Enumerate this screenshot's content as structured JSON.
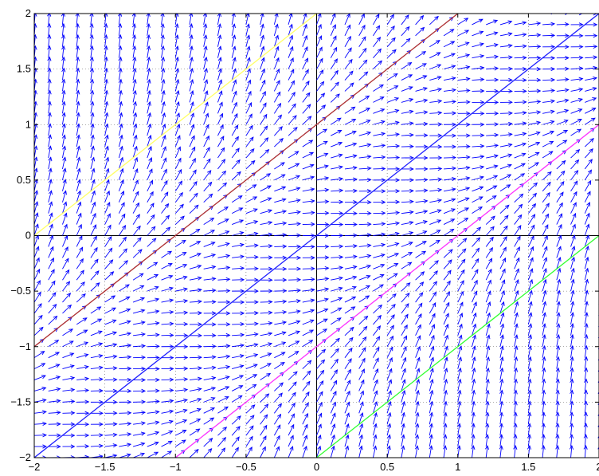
{
  "chart_data": {
    "type": "quiver",
    "title": "",
    "xlabel": "",
    "ylabel": "",
    "xlim": [
      -2,
      2
    ],
    "ylim": [
      -2,
      2
    ],
    "grid": "dotted",
    "legend": "none",
    "x_tick_labels": [
      "−2",
      "−1.5",
      "−1",
      "−0.5",
      "0",
      "0.5",
      "1",
      "1.5",
      "2"
    ],
    "y_tick_labels": [
      "−2",
      "−1.5",
      "−1",
      "−0.5",
      "0",
      "0.5",
      "1",
      "1.5",
      "2"
    ],
    "x_ticks": [
      -2,
      -1.5,
      -1,
      -0.5,
      0,
      0.5,
      1,
      1.5,
      2
    ],
    "y_ticks": [
      -2,
      -1.5,
      -1,
      -0.5,
      0,
      0.5,
      1,
      1.5,
      2
    ],
    "vector_field": {
      "description": "direction field dy/dx = (x - y)^2",
      "grid_step": 0.1,
      "arrow_color": "#0000ff"
    },
    "series": [
      {
        "color": "#ffff66",
        "slope": 1,
        "intercept": 2,
        "x_range": [
          -2,
          0
        ]
      },
      {
        "color": "#b03030",
        "slope": 1,
        "intercept": 1,
        "x_range": [
          -2,
          1
        ]
      },
      {
        "color": "#2020ff",
        "slope": 1,
        "intercept": 0,
        "x_range": [
          -2,
          2
        ]
      },
      {
        "color": "#ff33ff",
        "slope": 1,
        "intercept": -1,
        "x_range": [
          -1,
          2
        ]
      },
      {
        "color": "#33ff33",
        "slope": 1,
        "intercept": -2,
        "x_range": [
          0,
          2
        ]
      }
    ],
    "axis_lines": {
      "x0": true,
      "y0": true,
      "color": "#000000"
    }
  }
}
